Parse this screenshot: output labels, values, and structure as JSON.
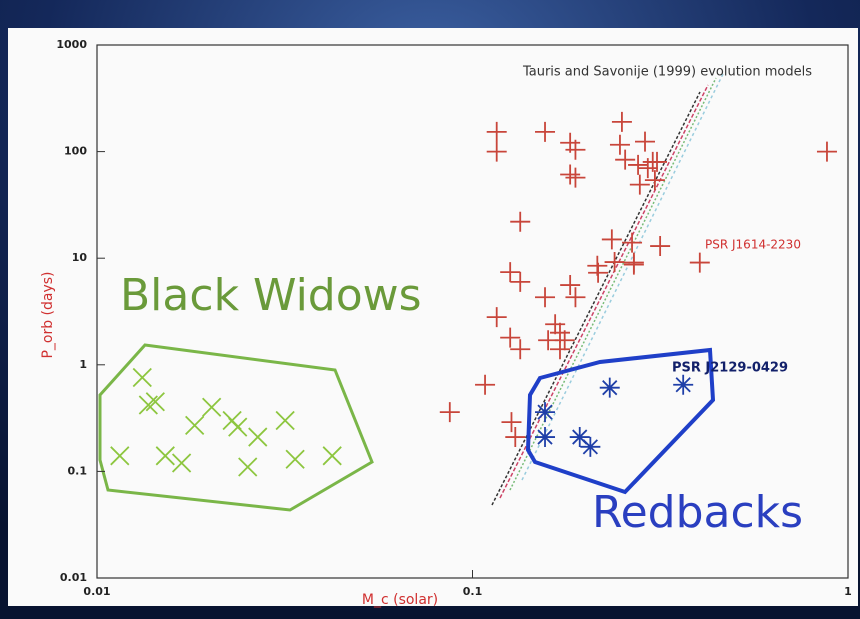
{
  "chart_data": {
    "type": "scatter",
    "xlabel": "M_c (solar)",
    "ylabel": "P_orb (days)",
    "xscale": "log",
    "yscale": "log",
    "xlim": [
      0.01,
      1
    ],
    "ylim": [
      0.01,
      1000
    ],
    "xticks": [
      0.01,
      0.1,
      1
    ],
    "yticks": [
      0.01,
      0.1,
      1,
      10,
      100,
      1000
    ],
    "annotations": [
      "Tauris and Savonije (1999) evolution models",
      "Black Widows",
      "Redbacks",
      "PSR J1614-2230",
      "PSR J2129-0429"
    ],
    "series": [
      {
        "color": "#c8453a",
        "marker": "plus",
        "x": [
          0.116,
          0.116,
          0.156,
          0.182,
          0.188,
          0.25,
          0.247,
          0.288,
          0.255,
          0.276,
          0.293,
          0.302,
          0.31,
          0.279,
          0.306,
          0.182,
          0.188,
          0.134,
          0.235,
          0.266,
          0.316,
          0.239,
          0.269,
          0.215,
          0.216,
          0.269,
          0.403,
          0.126,
          0.134,
          0.156,
          0.182,
          0.188,
          0.116,
          0.126,
          0.134,
          0.166,
          0.171,
          0.159,
          0.176,
          0.171,
          0.108,
          0.087,
          0.127,
          0.13,
          0.879
        ],
        "values": [
          153,
          100,
          153,
          121,
          104,
          190,
          116,
          124,
          84,
          75,
          70,
          80,
          80,
          49,
          54,
          61,
          57,
          22,
          15,
          14,
          13,
          9.2,
          9.1,
          8.5,
          7.3,
          8.7,
          9.1,
          7.4,
          6.0,
          4.3,
          5.6,
          4.3,
          2.8,
          1.8,
          1.4,
          2.4,
          2.0,
          1.7,
          1.7,
          1.4,
          0.65,
          0.36,
          0.29,
          0.21,
          100
        ]
      },
      {
        "color": "#8dc63f",
        "marker": "x",
        "x": [
          0.0132,
          0.0137,
          0.0143,
          0.0115,
          0.0152,
          0.0168,
          0.0182,
          0.0202,
          0.0229,
          0.0237,
          0.0252,
          0.0268,
          0.0317,
          0.0337,
          0.0423
        ],
        "values": [
          0.76,
          0.42,
          0.45,
          0.14,
          0.14,
          0.12,
          0.27,
          0.4,
          0.3,
          0.26,
          0.11,
          0.21,
          0.3,
          0.13,
          0.14
        ]
      },
      {
        "color": "#1f3fa8",
        "marker": "asterisk",
        "x": [
          0.156,
          0.156,
          0.193,
          0.206,
          0.232,
          0.364
        ],
        "values": [
          0.36,
          0.21,
          0.21,
          0.17,
          0.61,
          0.65
        ]
      }
    ]
  }
}
